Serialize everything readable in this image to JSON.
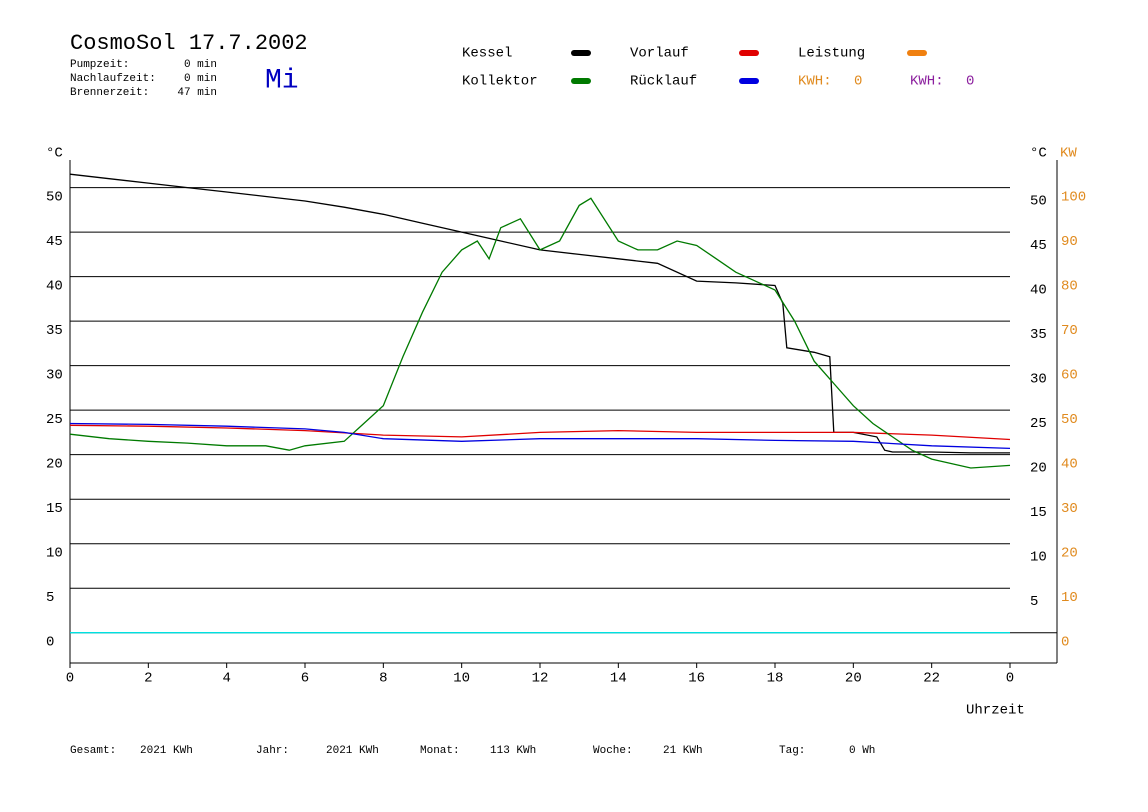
{
  "header": {
    "title": "CosmoSol 17.7.2002",
    "day": "Mi",
    "stats": [
      {
        "label": "Pumpzeit:",
        "value": "0 min"
      },
      {
        "label": "Nachlaufzeit:",
        "value": "0 min"
      },
      {
        "label": "Brennerzeit:",
        "value": "47 min"
      }
    ],
    "kwh": [
      {
        "label": "KWH:",
        "value": 0,
        "color": "#e08a1e"
      },
      {
        "label": "KWH:",
        "value": 0,
        "color": "#8b1e9e"
      }
    ]
  },
  "chart_data": {
    "type": "line",
    "y_label": "°C",
    "y2_label_c": "°C",
    "y2_label": "KW",
    "x_label": "Uhrzeit",
    "xlim": [
      0,
      25.2
    ],
    "xticks": [
      0,
      2,
      4,
      6,
      8,
      10,
      12,
      14,
      16,
      18,
      20,
      22,
      {
        "value": 24,
        "label": "0"
      }
    ],
    "ylim": [
      -3.4,
      53.1
    ],
    "yticks": [
      0,
      5,
      10,
      15,
      20,
      25,
      30,
      35,
      40,
      45,
      50
    ],
    "y2ticks_c": [
      5,
      10,
      15,
      20,
      25,
      30,
      35,
      40,
      45,
      50
    ],
    "y2lim": [
      -6.8,
      106.2
    ],
    "y2ticks": [
      0,
      10,
      20,
      30,
      40,
      50,
      60,
      70,
      80,
      90,
      100
    ],
    "grid": true,
    "series": [
      {
        "name": "Kessel",
        "color": "#000000",
        "x": [
          0,
          1,
          2,
          3,
          4,
          5,
          6,
          7,
          8,
          9,
          10,
          11,
          12,
          13,
          14,
          15,
          16,
          17,
          18,
          18.2,
          18.3,
          19,
          19.4,
          19.5,
          20,
          20.6,
          20.8,
          21,
          22,
          23,
          24
        ],
        "values": [
          51.5,
          51,
          50.5,
          50,
          49.5,
          49,
          48.5,
          47.8,
          47,
          46,
          45,
          44,
          43,
          42.5,
          42,
          41.5,
          39.5,
          39.3,
          39,
          37,
          32,
          31.5,
          31,
          22.5,
          22.5,
          22,
          20.5,
          20.3,
          20.3,
          20.2,
          20.2
        ]
      },
      {
        "name": "Vorlauf",
        "color": "#e00000",
        "x": [
          0,
          2,
          4,
          6,
          8,
          10,
          12,
          14,
          16,
          18,
          20,
          22,
          24
        ],
        "values": [
          23.3,
          23.2,
          23,
          22.7,
          22.2,
          22,
          22.5,
          22.7,
          22.5,
          22.5,
          22.5,
          22.2,
          21.7
        ]
      },
      {
        "name": "Leistung",
        "color": "#f08010",
        "x": [],
        "values": []
      },
      {
        "name": "Kollektor",
        "color": "#007a00",
        "x": [
          0,
          1,
          2,
          3,
          4,
          5,
          5.6,
          6,
          7,
          7.5,
          8,
          8.5,
          9,
          9.5,
          10,
          10.4,
          10.7,
          11,
          11.5,
          12,
          12.5,
          13,
          13.3,
          14,
          14.5,
          15,
          15.5,
          16,
          16.5,
          17,
          18,
          18.5,
          19,
          19.5,
          20,
          20.5,
          21,
          21.5,
          22,
          23,
          24
        ],
        "values": [
          22.3,
          21.8,
          21.5,
          21.3,
          21,
          21,
          20.5,
          21,
          21.5,
          23.5,
          25.5,
          31,
          36,
          40.5,
          43,
          44,
          42,
          45.5,
          46.5,
          43,
          44,
          48,
          48.8,
          44,
          43,
          43,
          44,
          43.5,
          42,
          40.5,
          38.5,
          35,
          30.5,
          28,
          25.5,
          23.5,
          22,
          20.5,
          19.5,
          18.5,
          18.8
        ]
      },
      {
        "name": "Rücklauf",
        "color": "#0000e0",
        "x": [
          0,
          2,
          4,
          6,
          7,
          8,
          10,
          12,
          14,
          16,
          18,
          20,
          22,
          24
        ],
        "values": [
          23.5,
          23.4,
          23.2,
          22.9,
          22.5,
          21.8,
          21.5,
          21.8,
          21.8,
          21.8,
          21.6,
          21.5,
          21,
          20.7
        ]
      },
      {
        "color": "#00e0e0",
        "x": [
          0,
          24
        ],
        "values": [
          0,
          0
        ]
      }
    ]
  },
  "footer": [
    {
      "label": "Gesamt:",
      "value": "2021 KWh"
    },
    {
      "label": "Jahr:",
      "value": "2021 KWh"
    },
    {
      "label": "Monat:",
      "value": "113 KWh"
    },
    {
      "label": "Woche:",
      "value": "21 KWh"
    },
    {
      "label": "Tag:",
      "value": "0 Wh"
    }
  ]
}
